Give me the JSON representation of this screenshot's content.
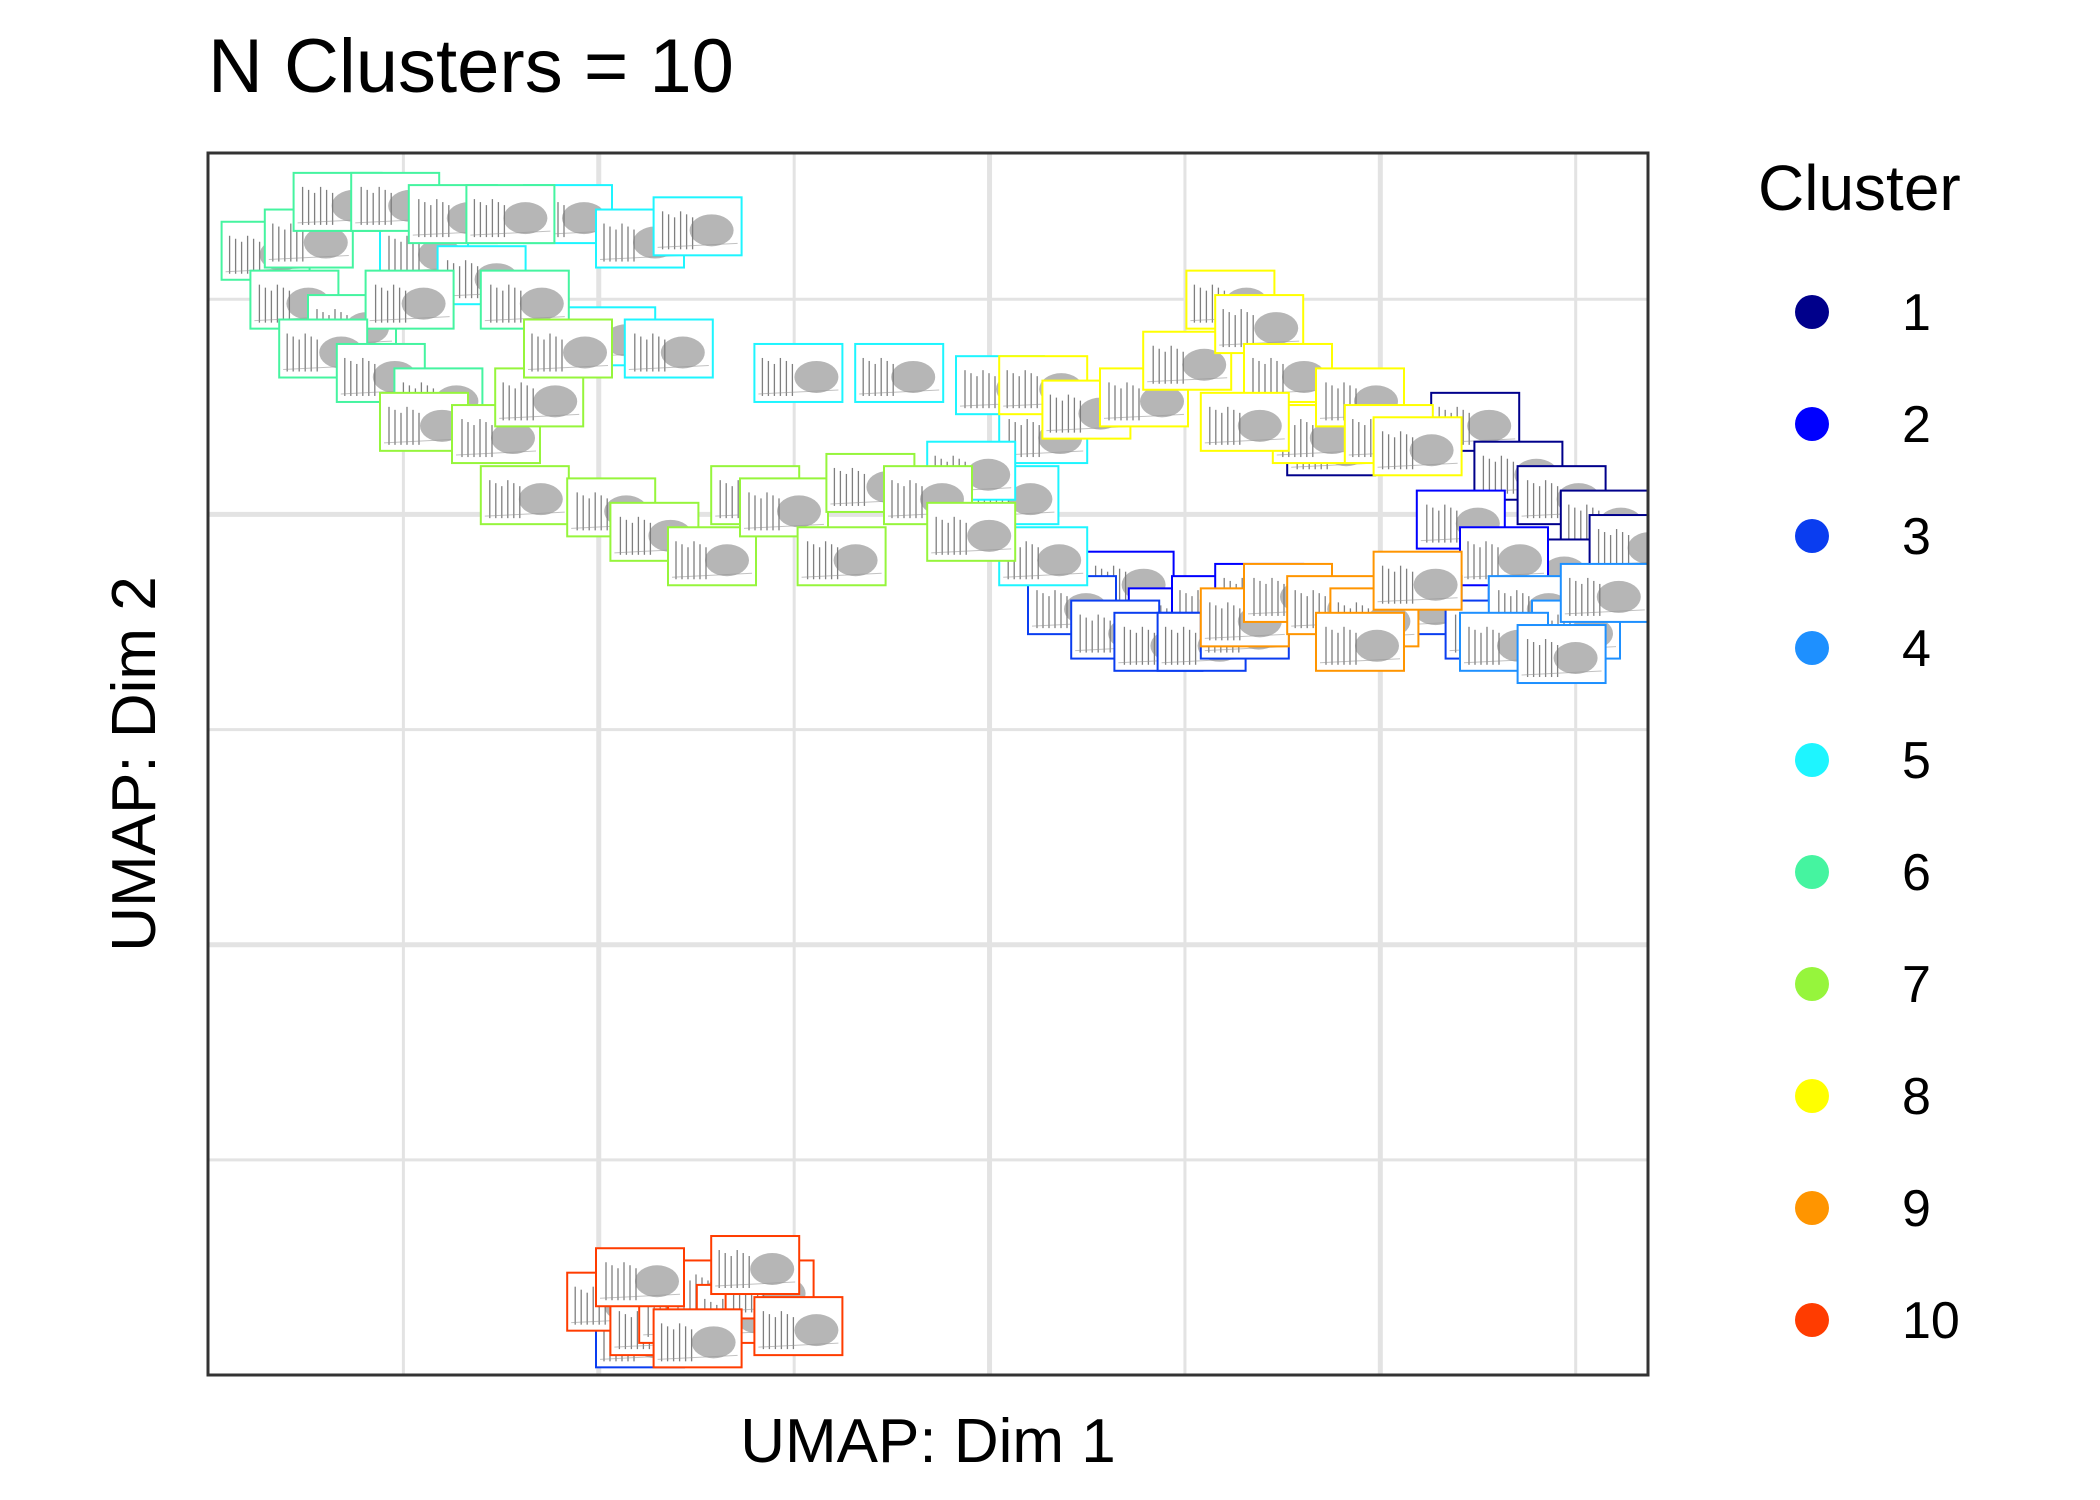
{
  "chart_data": {
    "type": "scatter",
    "title": "N Clusters = 10",
    "xlabel": "UMAP: Dim 1",
    "ylabel": "UMAP: Dim 2",
    "xlim": [
      0,
      1
    ],
    "ylim": [
      0,
      1
    ],
    "grid": true,
    "legend_position": "right",
    "legend": {
      "title": "Cluster",
      "entries": [
        {
          "label": "1",
          "color": "#00008B"
        },
        {
          "label": "2",
          "color": "#0000FF"
        },
        {
          "label": "3",
          "color": "#0A3DF0"
        },
        {
          "label": "4",
          "color": "#1E90FF"
        },
        {
          "label": "5",
          "color": "#1EF5FF"
        },
        {
          "label": "6",
          "color": "#45F4A0"
        },
        {
          "label": "7",
          "color": "#96F53C"
        },
        {
          "label": "8",
          "color": "#FFFF00"
        },
        {
          "label": "9",
          "color": "#FF9500"
        },
        {
          "label": "10",
          "color": "#FF3C00"
        }
      ]
    },
    "series": [
      {
        "name": "1",
        "color": "#00008B",
        "points": [
          [
            0.88,
            0.78
          ],
          [
            0.91,
            0.74
          ],
          [
            0.94,
            0.72
          ],
          [
            0.97,
            0.7
          ],
          [
            0.93,
            0.66
          ],
          [
            0.99,
            0.68
          ],
          [
            0.78,
            0.76
          ]
        ]
      },
      {
        "name": "2",
        "color": "#0000FF",
        "points": [
          [
            0.64,
            0.65
          ],
          [
            0.67,
            0.62
          ],
          [
            0.7,
            0.63
          ],
          [
            0.73,
            0.64
          ],
          [
            0.87,
            0.7
          ],
          [
            0.9,
            0.67
          ],
          [
            0.92,
            0.62
          ]
        ]
      },
      {
        "name": "3",
        "color": "#0A3DF0",
        "points": [
          [
            0.6,
            0.63
          ],
          [
            0.63,
            0.61
          ],
          [
            0.66,
            0.6
          ],
          [
            0.69,
            0.6
          ],
          [
            0.72,
            0.61
          ],
          [
            0.84,
            0.63
          ],
          [
            0.89,
            0.61
          ],
          [
            0.3,
            0.03
          ]
        ]
      },
      {
        "name": "4",
        "color": "#1E90FF",
        "points": [
          [
            0.92,
            0.63
          ],
          [
            0.95,
            0.61
          ],
          [
            0.97,
            0.64
          ],
          [
            0.9,
            0.6
          ],
          [
            0.94,
            0.59
          ]
        ]
      },
      {
        "name": "5",
        "color": "#1EF5FF",
        "points": [
          [
            0.15,
            0.92
          ],
          [
            0.19,
            0.9
          ],
          [
            0.25,
            0.95
          ],
          [
            0.3,
            0.93
          ],
          [
            0.34,
            0.94
          ],
          [
            0.28,
            0.85
          ],
          [
            0.32,
            0.84
          ],
          [
            0.41,
            0.82
          ],
          [
            0.48,
            0.82
          ],
          [
            0.55,
            0.81
          ],
          [
            0.58,
            0.77
          ],
          [
            0.56,
            0.72
          ],
          [
            0.53,
            0.74
          ],
          [
            0.58,
            0.67
          ]
        ]
      },
      {
        "name": "6",
        "color": "#45F4A0",
        "points": [
          [
            0.04,
            0.92
          ],
          [
            0.07,
            0.93
          ],
          [
            0.09,
            0.96
          ],
          [
            0.13,
            0.96
          ],
          [
            0.17,
            0.95
          ],
          [
            0.21,
            0.95
          ],
          [
            0.06,
            0.88
          ],
          [
            0.1,
            0.86
          ],
          [
            0.14,
            0.88
          ],
          [
            0.08,
            0.84
          ],
          [
            0.12,
            0.82
          ],
          [
            0.16,
            0.8
          ],
          [
            0.22,
            0.88
          ]
        ]
      },
      {
        "name": "7",
        "color": "#96F53C",
        "points": [
          [
            0.15,
            0.78
          ],
          [
            0.2,
            0.77
          ],
          [
            0.23,
            0.8
          ],
          [
            0.25,
            0.84
          ],
          [
            0.22,
            0.72
          ],
          [
            0.28,
            0.71
          ],
          [
            0.31,
            0.69
          ],
          [
            0.35,
            0.67
          ],
          [
            0.38,
            0.72
          ],
          [
            0.4,
            0.71
          ],
          [
            0.44,
            0.67
          ],
          [
            0.46,
            0.73
          ],
          [
            0.5,
            0.72
          ],
          [
            0.53,
            0.69
          ]
        ]
      },
      {
        "name": "8",
        "color": "#FFFF00",
        "points": [
          [
            0.58,
            0.81
          ],
          [
            0.61,
            0.79
          ],
          [
            0.65,
            0.8
          ],
          [
            0.68,
            0.83
          ],
          [
            0.71,
            0.88
          ],
          [
            0.73,
            0.86
          ],
          [
            0.75,
            0.82
          ],
          [
            0.77,
            0.77
          ],
          [
            0.8,
            0.8
          ],
          [
            0.82,
            0.77
          ],
          [
            0.84,
            0.76
          ],
          [
            0.72,
            0.78
          ]
        ]
      },
      {
        "name": "9",
        "color": "#FF9500",
        "points": [
          [
            0.72,
            0.62
          ],
          [
            0.75,
            0.64
          ],
          [
            0.78,
            0.63
          ],
          [
            0.81,
            0.62
          ],
          [
            0.84,
            0.65
          ],
          [
            0.8,
            0.6
          ]
        ]
      },
      {
        "name": "10",
        "color": "#FF3C00",
        "points": [
          [
            0.28,
            0.06
          ],
          [
            0.31,
            0.04
          ],
          [
            0.33,
            0.05
          ],
          [
            0.35,
            0.07
          ],
          [
            0.37,
            0.05
          ],
          [
            0.39,
            0.07
          ],
          [
            0.41,
            0.04
          ],
          [
            0.3,
            0.08
          ],
          [
            0.34,
            0.03
          ],
          [
            0.38,
            0.09
          ]
        ]
      }
    ]
  }
}
